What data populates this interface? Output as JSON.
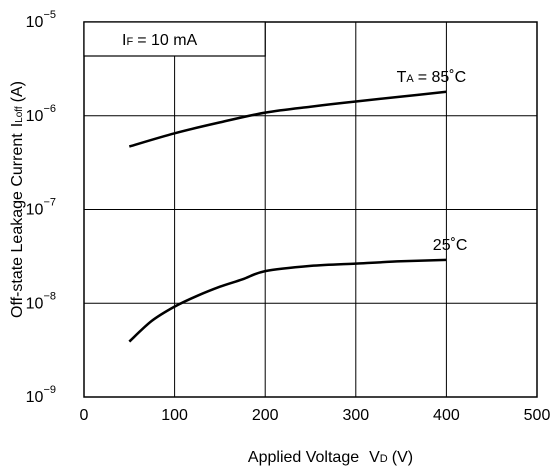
{
  "chart_data": {
    "type": "line",
    "xlabel": "Applied Voltage",
    "xlabel_symbol": "V",
    "xlabel_symbol_sub": "D",
    "xlabel_unit": "(V)",
    "ylabel": "Off-state Leakage Current",
    "ylabel_symbol": "I",
    "ylabel_symbol_sub": "Loff",
    "ylabel_unit": "(A)",
    "xlim": [
      0,
      500
    ],
    "ylim": [
      1e-09,
      1e-05
    ],
    "yscale": "log",
    "grid": true,
    "x_ticks": [
      0,
      100,
      200,
      300,
      400,
      500
    ],
    "y_ticks": [
      {
        "value": 1e-09,
        "base": "10",
        "exp": "−9"
      },
      {
        "value": 1e-08,
        "base": "10",
        "exp": "−8"
      },
      {
        "value": 1e-07,
        "base": "10",
        "exp": "−7"
      },
      {
        "value": 1e-06,
        "base": "10",
        "exp": "−6"
      },
      {
        "value": 1e-05,
        "base": "10",
        "exp": "−5"
      }
    ],
    "condition_box": {
      "symbol": "I",
      "symbol_sub": "F",
      "text": "= 10 mA"
    },
    "series": [
      {
        "label_symbol": "T",
        "label_symbol_sub": "A",
        "label_text": "= 85˚C",
        "color": "#000000",
        "x": [
          50,
          100,
          150,
          200,
          250,
          300,
          350,
          400
        ],
        "y": [
          4.7e-07,
          6.5e-07,
          8.5e-07,
          1.08e-06,
          1.25e-06,
          1.42e-06,
          1.6e-06,
          1.8e-06
        ]
      },
      {
        "label_text": "25˚C",
        "color": "#000000",
        "x": [
          50,
          75,
          100,
          125,
          150,
          175,
          200,
          250,
          300,
          350,
          400
        ],
        "y": [
          3.9e-09,
          6.5e-09,
          9.2e-09,
          1.2e-08,
          1.5e-08,
          1.8e-08,
          2.2e-08,
          2.5e-08,
          2.65e-08,
          2.8e-08,
          2.9e-08
        ]
      }
    ]
  }
}
